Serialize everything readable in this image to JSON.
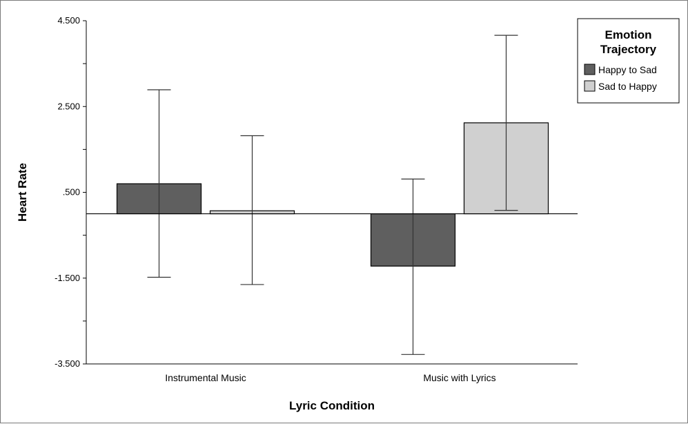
{
  "chart_data": {
    "type": "bar",
    "title": "",
    "xlabel": "Lyric Condition",
    "ylabel": "Heart Rate",
    "categories": [
      "Instrumental Music",
      "Music with Lyrics"
    ],
    "ylim": [
      -3.5,
      4.5
    ],
    "yticks": [
      -3.5,
      -1.5,
      0.5,
      2.5,
      4.5
    ],
    "ytick_labels": [
      "-3.500",
      "-1.500",
      ".500",
      "2.500",
      "4.500"
    ],
    "baseline": 0,
    "series": [
      {
        "name": "Happy to Sad",
        "color": "#5f5f5f",
        "values": [
          0.7,
          -1.22
        ],
        "error_low": [
          -1.48,
          -3.28
        ],
        "error_high": [
          2.89,
          0.81
        ]
      },
      {
        "name": "Sad to Happy",
        "color": "#d0d0d0",
        "values": [
          0.07,
          2.12
        ],
        "error_low": [
          -1.65,
          0.08
        ],
        "error_high": [
          1.82,
          4.16
        ]
      }
    ],
    "legend": {
      "title_lines": [
        "Emotion",
        "Trajectory"
      ],
      "position": "top-right"
    },
    "grid": false
  }
}
